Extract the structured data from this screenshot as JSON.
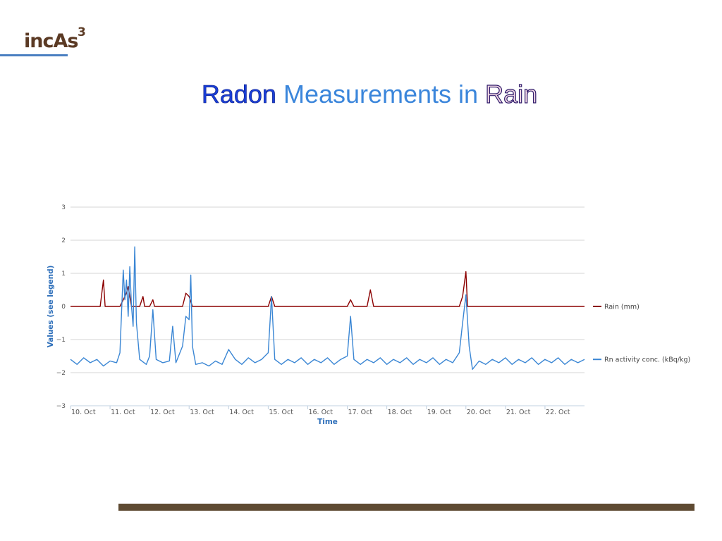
{
  "header": {
    "logo_text": "incAs",
    "logo_superscript": "3",
    "title_word_1": "Radon",
    "title_word_2": "Measurements in",
    "title_word_3": "Rain"
  },
  "colors": {
    "rain_series": "#8b0000",
    "radon_series": "#3a86d4",
    "axis_title": "#2e6fba",
    "logo_rule": "#4a7fc1",
    "bottom_bar": "#5e4a32"
  },
  "chart_data": {
    "type": "line",
    "title": "",
    "xlabel": "Time",
    "ylabel": "Values (see legend)",
    "ylim": [
      -3,
      3
    ],
    "yticks": [
      3,
      2,
      1,
      0,
      -1,
      -2,
      -3
    ],
    "y_tick_labels": [
      "3",
      "2",
      "1",
      "0",
      "−1",
      "−2",
      "−3"
    ],
    "x_tick_labels": [
      "10. Oct",
      "11. Oct",
      "12. Oct",
      "13. Oct",
      "14. Oct",
      "15. Oct",
      "16. Oct",
      "17. Oct",
      "18. Oct",
      "19. Oct",
      "20. Oct",
      "21. Oct",
      "22. Oct"
    ],
    "xlim": [
      "2014-10-10T00:00",
      "2014-10-23T00:00"
    ],
    "grid": true,
    "legend_position": "right, beside each series",
    "series": [
      {
        "name": "Rain (mm)",
        "color": "#8b0000",
        "points": [
          [
            "2014-10-10T00:00",
            0.0
          ],
          [
            "2014-10-10T18:00",
            0.0
          ],
          [
            "2014-10-10T20:00",
            0.8
          ],
          [
            "2014-10-10T21:00",
            0.0
          ],
          [
            "2014-10-11T06:00",
            0.0
          ],
          [
            "2014-10-11T08:00",
            0.2
          ],
          [
            "2014-10-11T10:00",
            0.4
          ],
          [
            "2014-10-11T11:00",
            0.6
          ],
          [
            "2014-10-11T12:00",
            0.3
          ],
          [
            "2014-10-11T13:00",
            0.0
          ],
          [
            "2014-10-11T18:00",
            0.0
          ],
          [
            "2014-10-11T20:00",
            0.3
          ],
          [
            "2014-10-11T21:00",
            0.0
          ],
          [
            "2014-10-12T00:00",
            0.0
          ],
          [
            "2014-10-12T02:00",
            0.2
          ],
          [
            "2014-10-12T03:00",
            0.0
          ],
          [
            "2014-10-12T20:00",
            0.0
          ],
          [
            "2014-10-12T22:00",
            0.4
          ],
          [
            "2014-10-13T00:00",
            0.3
          ],
          [
            "2014-10-13T02:00",
            0.0
          ],
          [
            "2014-10-15T00:00",
            0.0
          ],
          [
            "2014-10-15T02:00",
            0.3
          ],
          [
            "2014-10-15T04:00",
            0.0
          ],
          [
            "2014-10-17T00:00",
            0.0
          ],
          [
            "2014-10-17T02:00",
            0.2
          ],
          [
            "2014-10-17T04:00",
            0.0
          ],
          [
            "2014-10-17T12:00",
            0.0
          ],
          [
            "2014-10-17T14:00",
            0.5
          ],
          [
            "2014-10-17T16:00",
            0.0
          ],
          [
            "2014-10-19T20:00",
            0.0
          ],
          [
            "2014-10-19T22:00",
            0.3
          ],
          [
            "2014-10-20T00:00",
            1.05
          ],
          [
            "2014-10-20T01:00",
            0.0
          ],
          [
            "2014-10-23T00:00",
            0.0
          ]
        ]
      },
      {
        "name": "Rn activity conc. (kBq/kg)",
        "color": "#3a86d4",
        "points": [
          [
            "2014-10-10T00:00",
            -1.6
          ],
          [
            "2014-10-10T04:00",
            -1.75
          ],
          [
            "2014-10-10T08:00",
            -1.55
          ],
          [
            "2014-10-10T12:00",
            -1.7
          ],
          [
            "2014-10-10T16:00",
            -1.6
          ],
          [
            "2014-10-10T20:00",
            -1.8
          ],
          [
            "2014-10-11T00:00",
            -1.65
          ],
          [
            "2014-10-11T04:00",
            -1.7
          ],
          [
            "2014-10-11T06:00",
            -1.4
          ],
          [
            "2014-10-11T08:00",
            1.1
          ],
          [
            "2014-10-11T09:00",
            0.2
          ],
          [
            "2014-10-11T10:00",
            0.8
          ],
          [
            "2014-10-11T11:00",
            -0.3
          ],
          [
            "2014-10-11T12:00",
            1.2
          ],
          [
            "2014-10-11T13:00",
            0.0
          ],
          [
            "2014-10-11T14:00",
            -0.6
          ],
          [
            "2014-10-11T15:00",
            1.8
          ],
          [
            "2014-10-11T16:00",
            -0.5
          ],
          [
            "2014-10-11T18:00",
            -1.6
          ],
          [
            "2014-10-11T22:00",
            -1.75
          ],
          [
            "2014-10-12T00:00",
            -1.5
          ],
          [
            "2014-10-12T02:00",
            -0.1
          ],
          [
            "2014-10-12T04:00",
            -1.6
          ],
          [
            "2014-10-12T08:00",
            -1.7
          ],
          [
            "2014-10-12T12:00",
            -1.65
          ],
          [
            "2014-10-12T14:00",
            -0.6
          ],
          [
            "2014-10-12T16:00",
            -1.7
          ],
          [
            "2014-10-12T20:00",
            -1.2
          ],
          [
            "2014-10-12T22:00",
            -0.3
          ],
          [
            "2014-10-13T00:00",
            -0.4
          ],
          [
            "2014-10-13T01:00",
            0.95
          ],
          [
            "2014-10-13T02:00",
            -1.2
          ],
          [
            "2014-10-13T04:00",
            -1.75
          ],
          [
            "2014-10-13T08:00",
            -1.7
          ],
          [
            "2014-10-13T12:00",
            -1.8
          ],
          [
            "2014-10-13T16:00",
            -1.65
          ],
          [
            "2014-10-13T20:00",
            -1.75
          ],
          [
            "2014-10-14T00:00",
            -1.3
          ],
          [
            "2014-10-14T04:00",
            -1.6
          ],
          [
            "2014-10-14T08:00",
            -1.75
          ],
          [
            "2014-10-14T12:00",
            -1.55
          ],
          [
            "2014-10-14T16:00",
            -1.7
          ],
          [
            "2014-10-14T20:00",
            -1.6
          ],
          [
            "2014-10-15T00:00",
            -1.4
          ],
          [
            "2014-10-15T02:00",
            0.3
          ],
          [
            "2014-10-15T04:00",
            -1.6
          ],
          [
            "2014-10-15T08:00",
            -1.75
          ],
          [
            "2014-10-15T12:00",
            -1.6
          ],
          [
            "2014-10-15T16:00",
            -1.7
          ],
          [
            "2014-10-15T20:00",
            -1.55
          ],
          [
            "2014-10-16T00:00",
            -1.75
          ],
          [
            "2014-10-16T04:00",
            -1.6
          ],
          [
            "2014-10-16T08:00",
            -1.7
          ],
          [
            "2014-10-16T12:00",
            -1.55
          ],
          [
            "2014-10-16T16:00",
            -1.75
          ],
          [
            "2014-10-16T20:00",
            -1.6
          ],
          [
            "2014-10-17T00:00",
            -1.5
          ],
          [
            "2014-10-17T02:00",
            -0.3
          ],
          [
            "2014-10-17T04:00",
            -1.6
          ],
          [
            "2014-10-17T08:00",
            -1.75
          ],
          [
            "2014-10-17T12:00",
            -1.6
          ],
          [
            "2014-10-17T16:00",
            -1.7
          ],
          [
            "2014-10-17T20:00",
            -1.55
          ],
          [
            "2014-10-18T00:00",
            -1.75
          ],
          [
            "2014-10-18T04:00",
            -1.6
          ],
          [
            "2014-10-18T08:00",
            -1.7
          ],
          [
            "2014-10-18T12:00",
            -1.55
          ],
          [
            "2014-10-18T16:00",
            -1.75
          ],
          [
            "2014-10-18T20:00",
            -1.6
          ],
          [
            "2014-10-19T00:00",
            -1.7
          ],
          [
            "2014-10-19T04:00",
            -1.55
          ],
          [
            "2014-10-19T08:00",
            -1.75
          ],
          [
            "2014-10-19T12:00",
            -1.6
          ],
          [
            "2014-10-19T16:00",
            -1.7
          ],
          [
            "2014-10-19T20:00",
            -1.4
          ],
          [
            "2014-10-19T22:00",
            -0.5
          ],
          [
            "2014-10-20T00:00",
            0.35
          ],
          [
            "2014-10-20T02:00",
            -1.2
          ],
          [
            "2014-10-20T04:00",
            -1.9
          ],
          [
            "2014-10-20T08:00",
            -1.65
          ],
          [
            "2014-10-20T12:00",
            -1.75
          ],
          [
            "2014-10-20T16:00",
            -1.6
          ],
          [
            "2014-10-20T20:00",
            -1.7
          ],
          [
            "2014-10-21T00:00",
            -1.55
          ],
          [
            "2014-10-21T04:00",
            -1.75
          ],
          [
            "2014-10-21T08:00",
            -1.6
          ],
          [
            "2014-10-21T12:00",
            -1.7
          ],
          [
            "2014-10-21T16:00",
            -1.55
          ],
          [
            "2014-10-21T20:00",
            -1.75
          ],
          [
            "2014-10-22T00:00",
            -1.6
          ],
          [
            "2014-10-22T04:00",
            -1.7
          ],
          [
            "2014-10-22T08:00",
            -1.55
          ],
          [
            "2014-10-22T12:00",
            -1.75
          ],
          [
            "2014-10-22T16:00",
            -1.6
          ],
          [
            "2014-10-22T20:00",
            -1.7
          ],
          [
            "2014-10-23T00:00",
            -1.6
          ]
        ]
      }
    ]
  }
}
